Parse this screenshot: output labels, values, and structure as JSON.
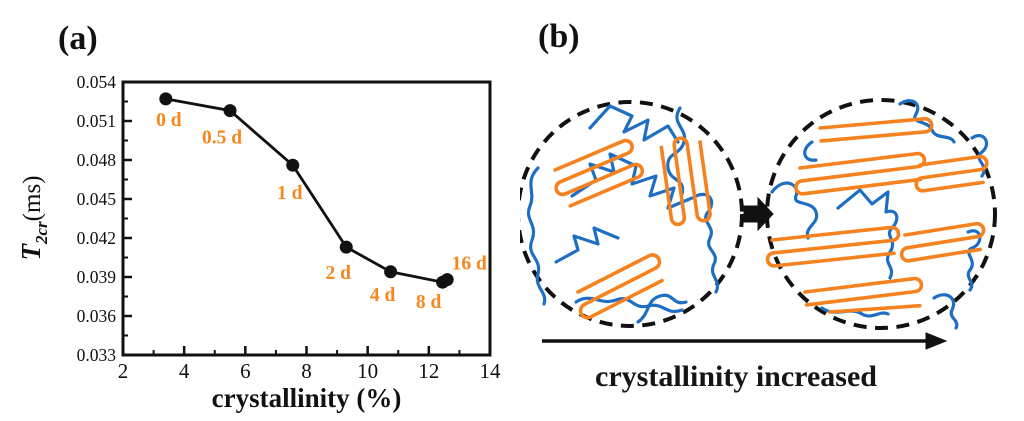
{
  "panel_a": {
    "label": "(a)"
  },
  "panel_b": {
    "label": "(b)",
    "caption": "crystallinity increased",
    "amorphous_chain_color": "#1E6FC4",
    "crystalline_chain_color": "#F5821F",
    "outline_color": "#111111"
  },
  "chart_data": {
    "type": "line",
    "title": "",
    "xlabel": "crystallinity (%)",
    "ylabel": "T2cr (ms)",
    "ylabel_parts": {
      "symbol": "T",
      "subscript": "2cr",
      "unit": "(ms)"
    },
    "x": [
      3.4,
      5.5,
      7.55,
      9.3,
      10.75,
      12.45,
      12.6
    ],
    "y": [
      0.0527,
      0.0518,
      0.0476,
      0.0413,
      0.0394,
      0.0386,
      0.0388
    ],
    "point_labels": [
      "0 d",
      "0.5 d",
      "1 d",
      "2 d",
      "4 d",
      "8 d",
      "16 d"
    ],
    "xlim": [
      2,
      14
    ],
    "ylim": [
      0.033,
      0.054
    ],
    "xticks": [
      2,
      4,
      6,
      8,
      10,
      12,
      14
    ],
    "yticks": [
      0.033,
      0.036,
      0.039,
      0.042,
      0.045,
      0.048,
      0.051,
      0.054
    ],
    "ytick_labels": [
      "0.033",
      "0.036",
      "0.039",
      "0.042",
      "0.045",
      "0.048",
      "0.051",
      "0.054"
    ],
    "xtick_minor": [
      3,
      5,
      7,
      9,
      11,
      13
    ],
    "ytick_minor": [
      0.0345,
      0.0375,
      0.0405,
      0.0435,
      0.0465,
      0.0495,
      0.0525
    ],
    "grid": false,
    "legend": "none",
    "axis_color": "#111111",
    "line_color": "#111111",
    "marker_color": "#111111",
    "point_label_color": "#F6871D"
  }
}
